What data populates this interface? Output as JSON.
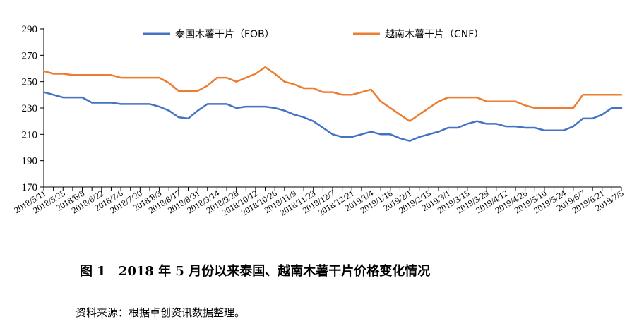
{
  "colors": {
    "thailand": "#4472C4",
    "vietnam": "#ED7D31",
    "axis": "#000000"
  },
  "caption": "图 1　2018 年 5 月份以来泰国、越南木薯干片价格变化情况",
  "source": "资料来源：根据卓创资讯数据整理。",
  "chart_data": {
    "type": "line",
    "title": "",
    "xlabel": "",
    "ylabel": "",
    "ylim": [
      170,
      290
    ],
    "yticks": [
      170,
      190,
      210,
      230,
      250,
      270,
      290
    ],
    "grid": false,
    "legend": "top",
    "x_labels": [
      "2018/5/11",
      "2018/5/25",
      "2018/6/8",
      "2018/6/22",
      "2018/7/6",
      "2018/7/20",
      "2018/8/3",
      "2018/8/17",
      "2018/8/31",
      "2018/9/14",
      "2018/9/28",
      "2018/10/12",
      "2018/10/26",
      "2018/11/9",
      "2018/11/23",
      "2018/12/7",
      "2018/12/21",
      "2019/1/4",
      "2019/1/18",
      "2019/2/1",
      "2019/2/15",
      "2019/3/1",
      "2019/3/15",
      "2019/3/29",
      "2019/4/12",
      "2019/4/26",
      "2019/5/10",
      "2019/5/24",
      "2019/6/7",
      "2019/6/21",
      "2019/7/5"
    ],
    "series": [
      {
        "name": "泰国木薯干片（FOB）",
        "color": "#4472C4",
        "values": [
          242,
          240,
          238,
          238,
          238,
          234,
          234,
          234,
          233,
          233,
          233,
          233,
          231,
          228,
          223,
          222,
          228,
          233,
          233,
          233,
          230,
          231,
          231,
          231,
          230,
          228,
          225,
          223,
          220,
          215,
          210,
          208,
          208,
          210,
          212,
          210,
          210,
          207,
          205,
          208,
          210,
          212,
          215,
          215,
          218,
          220,
          218,
          218,
          216,
          216,
          215,
          215,
          213,
          213,
          213,
          216,
          222,
          222,
          225,
          230,
          230
        ]
      },
      {
        "name": "越南木薯干片（CNF）",
        "color": "#ED7D31",
        "values": [
          258,
          256,
          256,
          255,
          255,
          255,
          255,
          255,
          253,
          253,
          253,
          253,
          253,
          249,
          243,
          243,
          243,
          247,
          253,
          253,
          250,
          253,
          256,
          261,
          256,
          250,
          248,
          245,
          245,
          242,
          242,
          240,
          240,
          242,
          244,
          235,
          230,
          225,
          220,
          225,
          230,
          235,
          238,
          238,
          238,
          238,
          235,
          235,
          235,
          235,
          232,
          230,
          230,
          230,
          230,
          230,
          240,
          240,
          240,
          240,
          240
        ]
      }
    ]
  }
}
